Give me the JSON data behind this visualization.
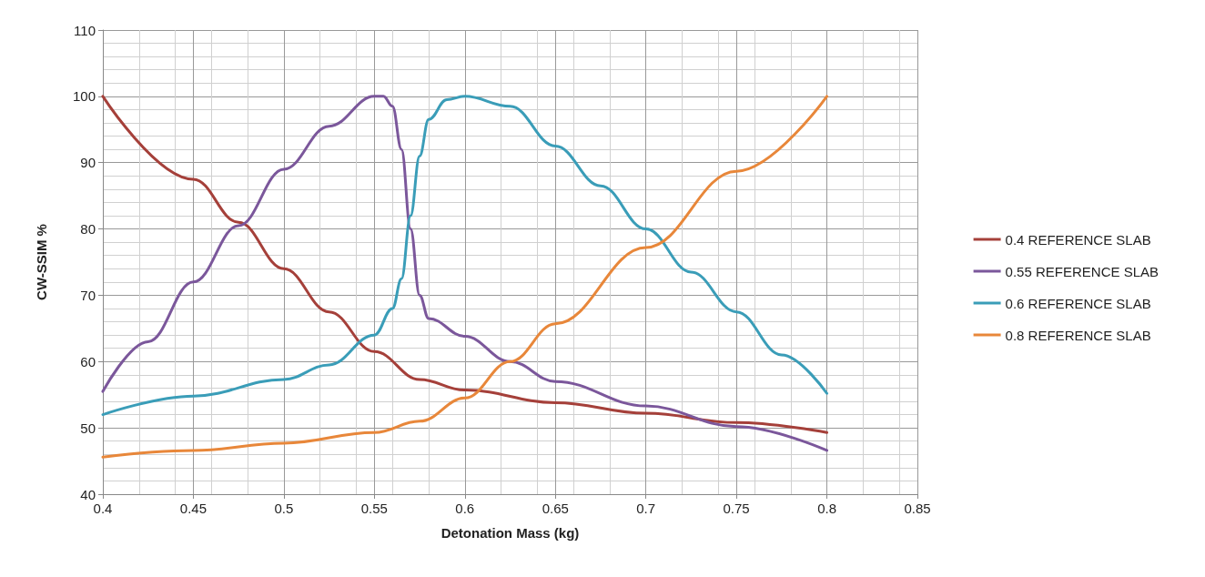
{
  "chart_data": {
    "type": "line",
    "xlabel": "Detonation Mass (kg)",
    "ylabel": "CW-SSIM %",
    "xlim": [
      0.4,
      0.85
    ],
    "xticks": [
      0.4,
      0.45,
      0.5,
      0.55,
      0.6,
      0.65,
      0.7,
      0.75,
      0.8,
      0.85
    ],
    "ylim": [
      40,
      110
    ],
    "yticks": [
      40,
      50,
      60,
      70,
      80,
      90,
      100,
      110
    ],
    "grid": true,
    "legend": "right",
    "marker": "none",
    "line_style": "solid",
    "series": [
      {
        "name": "0.4 REFERENCE SLAB",
        "color": "#a5403a",
        "x": [
          0.4,
          0.45,
          0.475,
          0.5,
          0.525,
          0.55,
          0.575,
          0.6,
          0.65,
          0.7,
          0.75,
          0.8
        ],
        "values": [
          100,
          87.5,
          81,
          74,
          67.5,
          61.5,
          57.3,
          55.7,
          53.8,
          52.2,
          50.8,
          49.3
        ]
      },
      {
        "name": "0.55 REFERENCE SLAB",
        "color": "#7b579b",
        "x": [
          0.4,
          0.425,
          0.45,
          0.475,
          0.5,
          0.525,
          0.55,
          0.555,
          0.56,
          0.565,
          0.57,
          0.575,
          0.58,
          0.6,
          0.625,
          0.65,
          0.7,
          0.75,
          0.8
        ],
        "values": [
          55.5,
          63,
          72,
          80.5,
          89,
          95.5,
          100,
          100,
          98.5,
          92,
          80,
          70,
          66.5,
          63.8,
          60,
          57,
          53.3,
          50.2,
          46.6
        ]
      },
      {
        "name": "0.6 REFERENCE SLAB",
        "color": "#3a9db8",
        "x": [
          0.4,
          0.45,
          0.5,
          0.525,
          0.55,
          0.56,
          0.565,
          0.57,
          0.575,
          0.58,
          0.59,
          0.6,
          0.625,
          0.65,
          0.675,
          0.7,
          0.725,
          0.75,
          0.775,
          0.8
        ],
        "values": [
          52,
          54.8,
          57.3,
          59.5,
          64,
          68,
          72.5,
          82,
          91,
          96.5,
          99.5,
          100,
          98.5,
          92.5,
          86.5,
          80,
          73.5,
          67.5,
          61,
          55.2
        ]
      },
      {
        "name": "0.8 REFERENCE SLAB",
        "color": "#e8873a",
        "x": [
          0.4,
          0.45,
          0.5,
          0.55,
          0.575,
          0.6,
          0.625,
          0.65,
          0.7,
          0.75,
          0.8
        ],
        "values": [
          45.6,
          46.6,
          47.7,
          49.3,
          51,
          54.5,
          60,
          65.7,
          77.2,
          88.7,
          100
        ]
      }
    ]
  }
}
